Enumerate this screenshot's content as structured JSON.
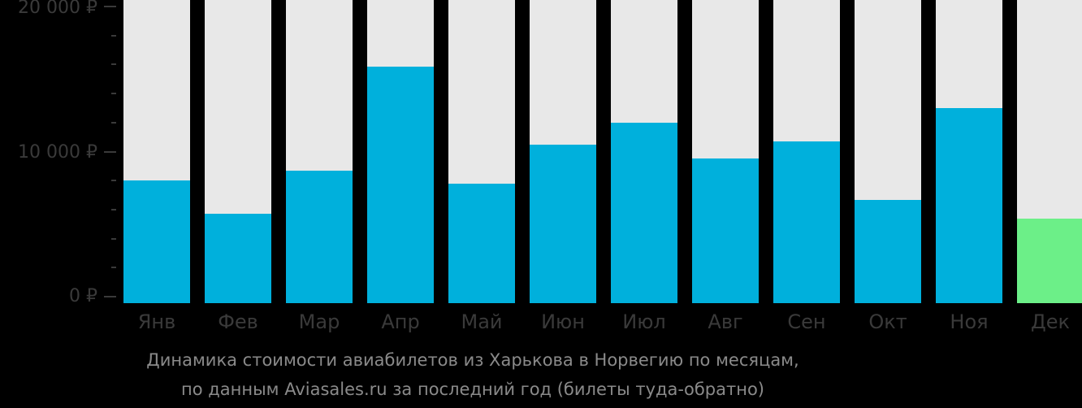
{
  "chart_data": {
    "type": "bar",
    "title": "Динамика стоимости авиабилетов из Харькова в Норвегию по месяцам, по данным Aviasales.ru за последний год (билеты туда-обратно)",
    "xlabel": "",
    "ylabel": "",
    "ylim": [
      0,
      20000
    ],
    "yticks": [
      "0 ₽",
      "10 000 ₽",
      "20 000 ₽"
    ],
    "categories": [
      "Янв",
      "Фев",
      "Мар",
      "Апр",
      "Май",
      "Июн",
      "Июл",
      "Авг",
      "Сен",
      "Окт",
      "Ноя",
      "Дек"
    ],
    "values": [
      8000,
      5700,
      8700,
      15850,
      7800,
      10500,
      12000,
      9500,
      10700,
      6650,
      13000,
      5400
    ],
    "colors": {
      "bar": "#00b0dc",
      "highlight": "#6cef88",
      "background_bar": "#e8e8e8",
      "highlight_index": 11
    },
    "grid": false,
    "legend": null
  },
  "axis": {
    "y_labels": {
      "top": "20 000 ₽",
      "mid": "10 000 ₽",
      "zero": "0 ₽"
    }
  },
  "caption": {
    "line1": "Динамика стоимости авиабилетов из Харькова в Норвегию по месяцам,",
    "line2": "по данным Aviasales.ru за последний год (билеты туда-обратно)"
  }
}
